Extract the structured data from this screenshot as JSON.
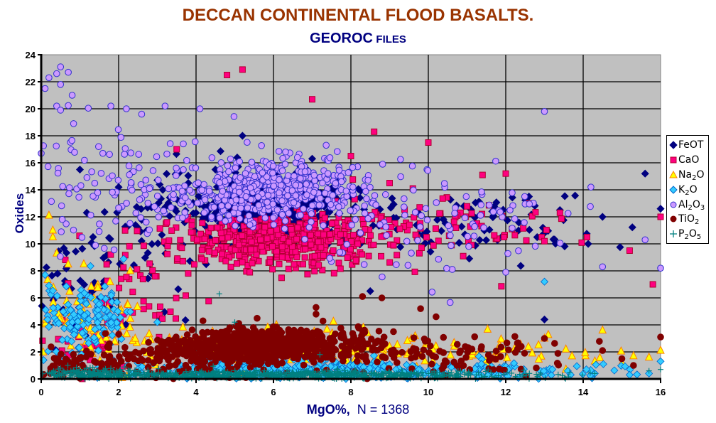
{
  "chart_data": {
    "type": "scatter",
    "title": "DECCAN CONTINENTAL FLOOD BASALTS.",
    "subtitle_main": "GEOROC",
    "subtitle_small": "FILES",
    "xlabel_bold": "MgO%,",
    "xlabel_rest": "N = 1368",
    "ylabel": "Oxides",
    "xlim": [
      0,
      16
    ],
    "ylim": [
      0,
      24
    ],
    "x_ticks": [
      "0",
      "2",
      "4",
      "6",
      "8",
      "10",
      "12",
      "14",
      "16"
    ],
    "y_ticks": [
      "0",
      "2",
      "4",
      "6",
      "8",
      "10",
      "12",
      "14",
      "16",
      "18",
      "20",
      "22",
      "24"
    ],
    "grid": true,
    "legend_position": "right",
    "plot_background": "#C0C0C0",
    "series": [
      {
        "name": "FeOT",
        "label_main": "FeOT",
        "label_sub": "",
        "label_tail": "",
        "marker": "diamond",
        "fill": "#000080",
        "stroke": "#000080",
        "clusters": [
          {
            "n": 420,
            "mx": 5.8,
            "sx": 1.1,
            "my": 12.8,
            "sy": 1.2
          },
          {
            "n": 90,
            "mx": 10.5,
            "sx": 2.0,
            "my": 11.5,
            "sy": 1.3
          },
          {
            "n": 60,
            "mx": 2.5,
            "sx": 1.0,
            "my": 10.5,
            "sy": 2.5
          },
          {
            "n": 40,
            "mx": 0.8,
            "sx": 0.6,
            "my": 6.0,
            "sy": 2.0
          }
        ],
        "points": [
          [
            15.6,
            15.2
          ],
          [
            16,
            12.6
          ],
          [
            13.0,
            4.4
          ],
          [
            1.0,
            15.5
          ],
          [
            2.0,
            14.2
          ],
          [
            3.8,
            14.5
          ],
          [
            4.5,
            15.5
          ],
          [
            5.2,
            18.0
          ],
          [
            7.0,
            16.3
          ],
          [
            12.6,
            13.5
          ],
          [
            13.4,
            12.5
          ],
          [
            14.5,
            12.0
          ],
          [
            8.0,
            13.5
          ],
          [
            8.5,
            6.5
          ]
        ]
      },
      {
        "name": "CaO",
        "label_main": "CaO",
        "label_sub": "",
        "label_tail": "",
        "marker": "square",
        "fill": "#FF0080",
        "stroke": "#B00030",
        "clusters": [
          {
            "n": 480,
            "mx": 6.0,
            "sx": 1.2,
            "my": 10.2,
            "sy": 1.0
          },
          {
            "n": 100,
            "mx": 10.0,
            "sx": 1.6,
            "my": 11.2,
            "sy": 1.1
          },
          {
            "n": 50,
            "mx": 2.8,
            "sx": 1.0,
            "my": 7.0,
            "sy": 2.0
          },
          {
            "n": 30,
            "mx": 1.0,
            "sx": 0.6,
            "my": 2.5,
            "sy": 1.2
          }
        ],
        "points": [
          [
            4.8,
            22.5
          ],
          [
            5.2,
            22.9
          ],
          [
            7.0,
            20.7
          ],
          [
            3.5,
            17.0
          ],
          [
            8.6,
            18.3
          ],
          [
            10.0,
            17.5
          ],
          [
            15.8,
            7.0
          ],
          [
            16,
            12.0
          ],
          [
            15.2,
            9.5
          ],
          [
            14.1,
            10.5
          ],
          [
            12.6,
            13.0
          ],
          [
            13.4,
            12.3
          ],
          [
            13.0,
            10.2
          ],
          [
            11.4,
            15.1
          ],
          [
            12.0,
            15.2
          ],
          [
            8.0,
            16.5
          ],
          [
            9.0,
            14.5
          ],
          [
            9.6,
            14.1
          ]
        ]
      },
      {
        "name": "Na2O",
        "label_main": "Na",
        "label_sub": "2",
        "label_tail": "O",
        "marker": "triangle",
        "fill": "#FFFF00",
        "stroke": "#FF8000",
        "clusters": [
          {
            "n": 120,
            "mx": 6.0,
            "sx": 1.6,
            "my": 2.4,
            "sy": 0.7
          },
          {
            "n": 90,
            "mx": 1.2,
            "sx": 0.9,
            "my": 4.2,
            "sy": 1.9
          },
          {
            "n": 70,
            "mx": 10.5,
            "sx": 2.2,
            "my": 1.9,
            "sy": 0.6
          }
        ],
        "points": [
          [
            0.2,
            12.1
          ],
          [
            0.3,
            11.0
          ],
          [
            0.3,
            10.5
          ],
          [
            0.4,
            9.3
          ],
          [
            1.1,
            8.5
          ],
          [
            2.3,
            8.0
          ],
          [
            14.5,
            3.6
          ],
          [
            13.0,
            3.0
          ],
          [
            16,
            2.1
          ],
          [
            15.3,
            1.7
          ],
          [
            15.7,
            1.6
          ],
          [
            15.0,
            1.2
          ]
        ]
      },
      {
        "name": "K2O",
        "label_main": "K",
        "label_sub": "2",
        "label_tail": "O",
        "marker": "diamond",
        "fill": "#33CCFF",
        "stroke": "#0066CC",
        "clusters": [
          {
            "n": 140,
            "mx": 1.2,
            "sx": 0.6,
            "my": 4.3,
            "sy": 1.5
          },
          {
            "n": 260,
            "mx": 6.0,
            "sx": 2.0,
            "my": 0.8,
            "sy": 0.4
          },
          {
            "n": 110,
            "mx": 11.0,
            "sx": 2.2,
            "my": 0.6,
            "sy": 0.3
          }
        ],
        "points": [
          [
            0.1,
            7.7
          ],
          [
            0.2,
            6.9
          ],
          [
            13.0,
            7.2
          ],
          [
            3.0,
            4.2
          ],
          [
            16,
            1.3
          ],
          [
            15.7,
            0.4
          ],
          [
            15.2,
            0.3
          ],
          [
            14.3,
            0.4
          ]
        ]
      },
      {
        "name": "Al2O3",
        "label_main": "Al",
        "label_sub": "2",
        "label_tail": "O",
        "label_sub2": "3",
        "marker": "circle",
        "fill": "#CC99FF",
        "stroke": "#3333CC",
        "clusters": [
          {
            "n": 520,
            "mx": 5.9,
            "sx": 1.2,
            "my": 14.0,
            "sy": 1.1
          },
          {
            "n": 120,
            "mx": 1.8,
            "sx": 1.3,
            "my": 14.8,
            "sy": 2.4
          },
          {
            "n": 90,
            "mx": 10.0,
            "sx": 1.8,
            "my": 12.0,
            "sy": 1.9
          }
        ],
        "points": [
          [
            0.5,
            23.1
          ],
          [
            0.4,
            22.6
          ],
          [
            0.2,
            22.3
          ],
          [
            0.1,
            21.5
          ],
          [
            0.7,
            22.7
          ],
          [
            0.5,
            21.8
          ],
          [
            0.8,
            21.0
          ],
          [
            0.4,
            20.2
          ],
          [
            0.5,
            19.9
          ],
          [
            2.2,
            20.0
          ],
          [
            1.8,
            20.2
          ],
          [
            3.2,
            20.2
          ],
          [
            4.1,
            20.0
          ],
          [
            13.0,
            19.8
          ],
          [
            0.0,
            16.7
          ],
          [
            16,
            8.2
          ],
          [
            15.6,
            10.3
          ],
          [
            14.5,
            8.3
          ],
          [
            12.0,
            7.9
          ],
          [
            14.2,
            14.2
          ]
        ]
      },
      {
        "name": "TiO2",
        "label_main": "TiO",
        "label_sub": "2",
        "label_tail": "",
        "marker": "circle",
        "fill": "#800000",
        "stroke": "#800000",
        "clusters": [
          {
            "n": 700,
            "mx": 5.8,
            "sx": 1.2,
            "my": 2.5,
            "sy": 0.6
          },
          {
            "n": 140,
            "mx": 3.5,
            "sx": 1.4,
            "my": 1.4,
            "sy": 0.8
          },
          {
            "n": 120,
            "mx": 10.0,
            "sx": 2.0,
            "my": 1.8,
            "sy": 0.8
          },
          {
            "n": 60,
            "mx": 0.9,
            "sx": 0.6,
            "my": 0.9,
            "sy": 0.5
          }
        ],
        "points": [
          [
            7.1,
            4.8
          ],
          [
            8.3,
            6.1
          ],
          [
            8.8,
            6.0
          ],
          [
            9.8,
            5.2
          ],
          [
            10.2,
            4.6
          ],
          [
            9.1,
            3.5
          ],
          [
            16,
            3.1
          ],
          [
            13.0,
            3.0
          ],
          [
            15.0,
            1.5
          ],
          [
            14.5,
            2.1
          ],
          [
            15.3,
            1.0
          ]
        ]
      },
      {
        "name": "P2O5",
        "label_main": "P",
        "label_sub": "2",
        "label_tail": "O",
        "label_sub2": "5",
        "marker": "plus",
        "fill": "none",
        "stroke": "#008080",
        "clusters": [
          {
            "n": 800,
            "mx": 6.0,
            "sx": 3.0,
            "my": 0.3,
            "sy": 0.15
          },
          {
            "n": 150,
            "mx": 1.2,
            "sx": 0.8,
            "my": 0.4,
            "sy": 0.2
          }
        ],
        "points": [
          [
            4.6,
            6.3
          ],
          [
            5.0,
            4.2
          ],
          [
            7.2,
            1.8
          ],
          [
            15.7,
            0.6
          ],
          [
            16,
            0.7
          ],
          [
            14.3,
            0.4
          ]
        ]
      }
    ]
  }
}
